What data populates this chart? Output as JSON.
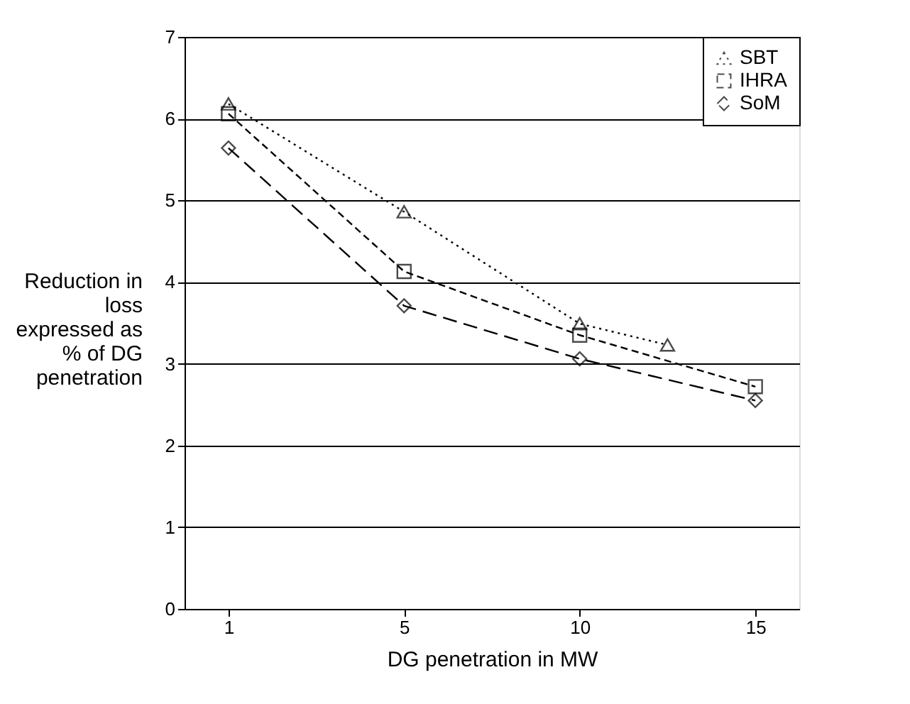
{
  "chart_data": {
    "type": "line",
    "xlabel": "DG penetration in MW",
    "ylabel": "Reduction in loss expressed as % of DG penetration",
    "categories": [
      "1",
      null,
      "5",
      null,
      "10",
      null,
      "15"
    ],
    "ylim": [
      0,
      7
    ],
    "yticks": [
      0,
      1,
      2,
      3,
      4,
      5,
      6,
      7
    ],
    "grid": "y",
    "legend": "top right",
    "series": [
      {
        "name": "SBT",
        "color": "#000000",
        "marker": "triangle",
        "line_style": "dotted",
        "values": [
          6.18,
          null,
          4.86,
          null,
          3.49,
          3.23,
          null
        ]
      },
      {
        "name": "IHRA",
        "color": "#000000",
        "marker": "square",
        "line_style": "dashed",
        "values": [
          6.06,
          null,
          4.13,
          null,
          3.35,
          null,
          2.72
        ]
      },
      {
        "name": "SoM",
        "color": "#000000",
        "marker": "diamond",
        "line_style": "longdash",
        "values": [
          5.64,
          null,
          3.71,
          null,
          3.06,
          null,
          2.55
        ]
      }
    ]
  }
}
